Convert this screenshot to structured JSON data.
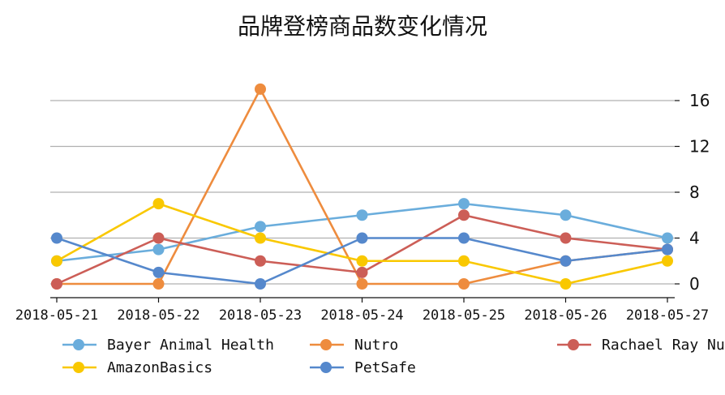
{
  "chart_data": {
    "type": "line",
    "title": "品牌登榜商品数变化情况",
    "xlabel": "",
    "ylabel": "",
    "categories": [
      "2018-05-21",
      "2018-05-22",
      "2018-05-23",
      "2018-05-24",
      "2018-05-25",
      "2018-05-26",
      "2018-05-27"
    ],
    "y_ticks": [
      0,
      4,
      8,
      12,
      16
    ],
    "ylim": [
      -1.2,
      18
    ],
    "y_axis_position": "right",
    "grid": "horizontal",
    "legend_position": "bottom",
    "series": [
      {
        "name": "Bayer Animal Health",
        "color": "#6aaddc",
        "values": [
          2,
          3,
          5,
          6,
          7,
          6,
          4
        ]
      },
      {
        "name": "Nutro",
        "color": "#ee8c3e",
        "values": [
          0,
          0,
          17,
          0,
          0,
          2,
          3
        ]
      },
      {
        "name": "Rachael Ray Nutrish",
        "color": "#cc5e57",
        "values": [
          0,
          4,
          2,
          1,
          6,
          4,
          3
        ]
      },
      {
        "name": "AmazonBasics",
        "color": "#f9c800",
        "values": [
          2,
          7,
          4,
          2,
          2,
          0,
          2
        ]
      },
      {
        "name": "PetSafe",
        "color": "#5588cc",
        "values": [
          4,
          1,
          0,
          4,
          4,
          2,
          3
        ]
      }
    ]
  }
}
